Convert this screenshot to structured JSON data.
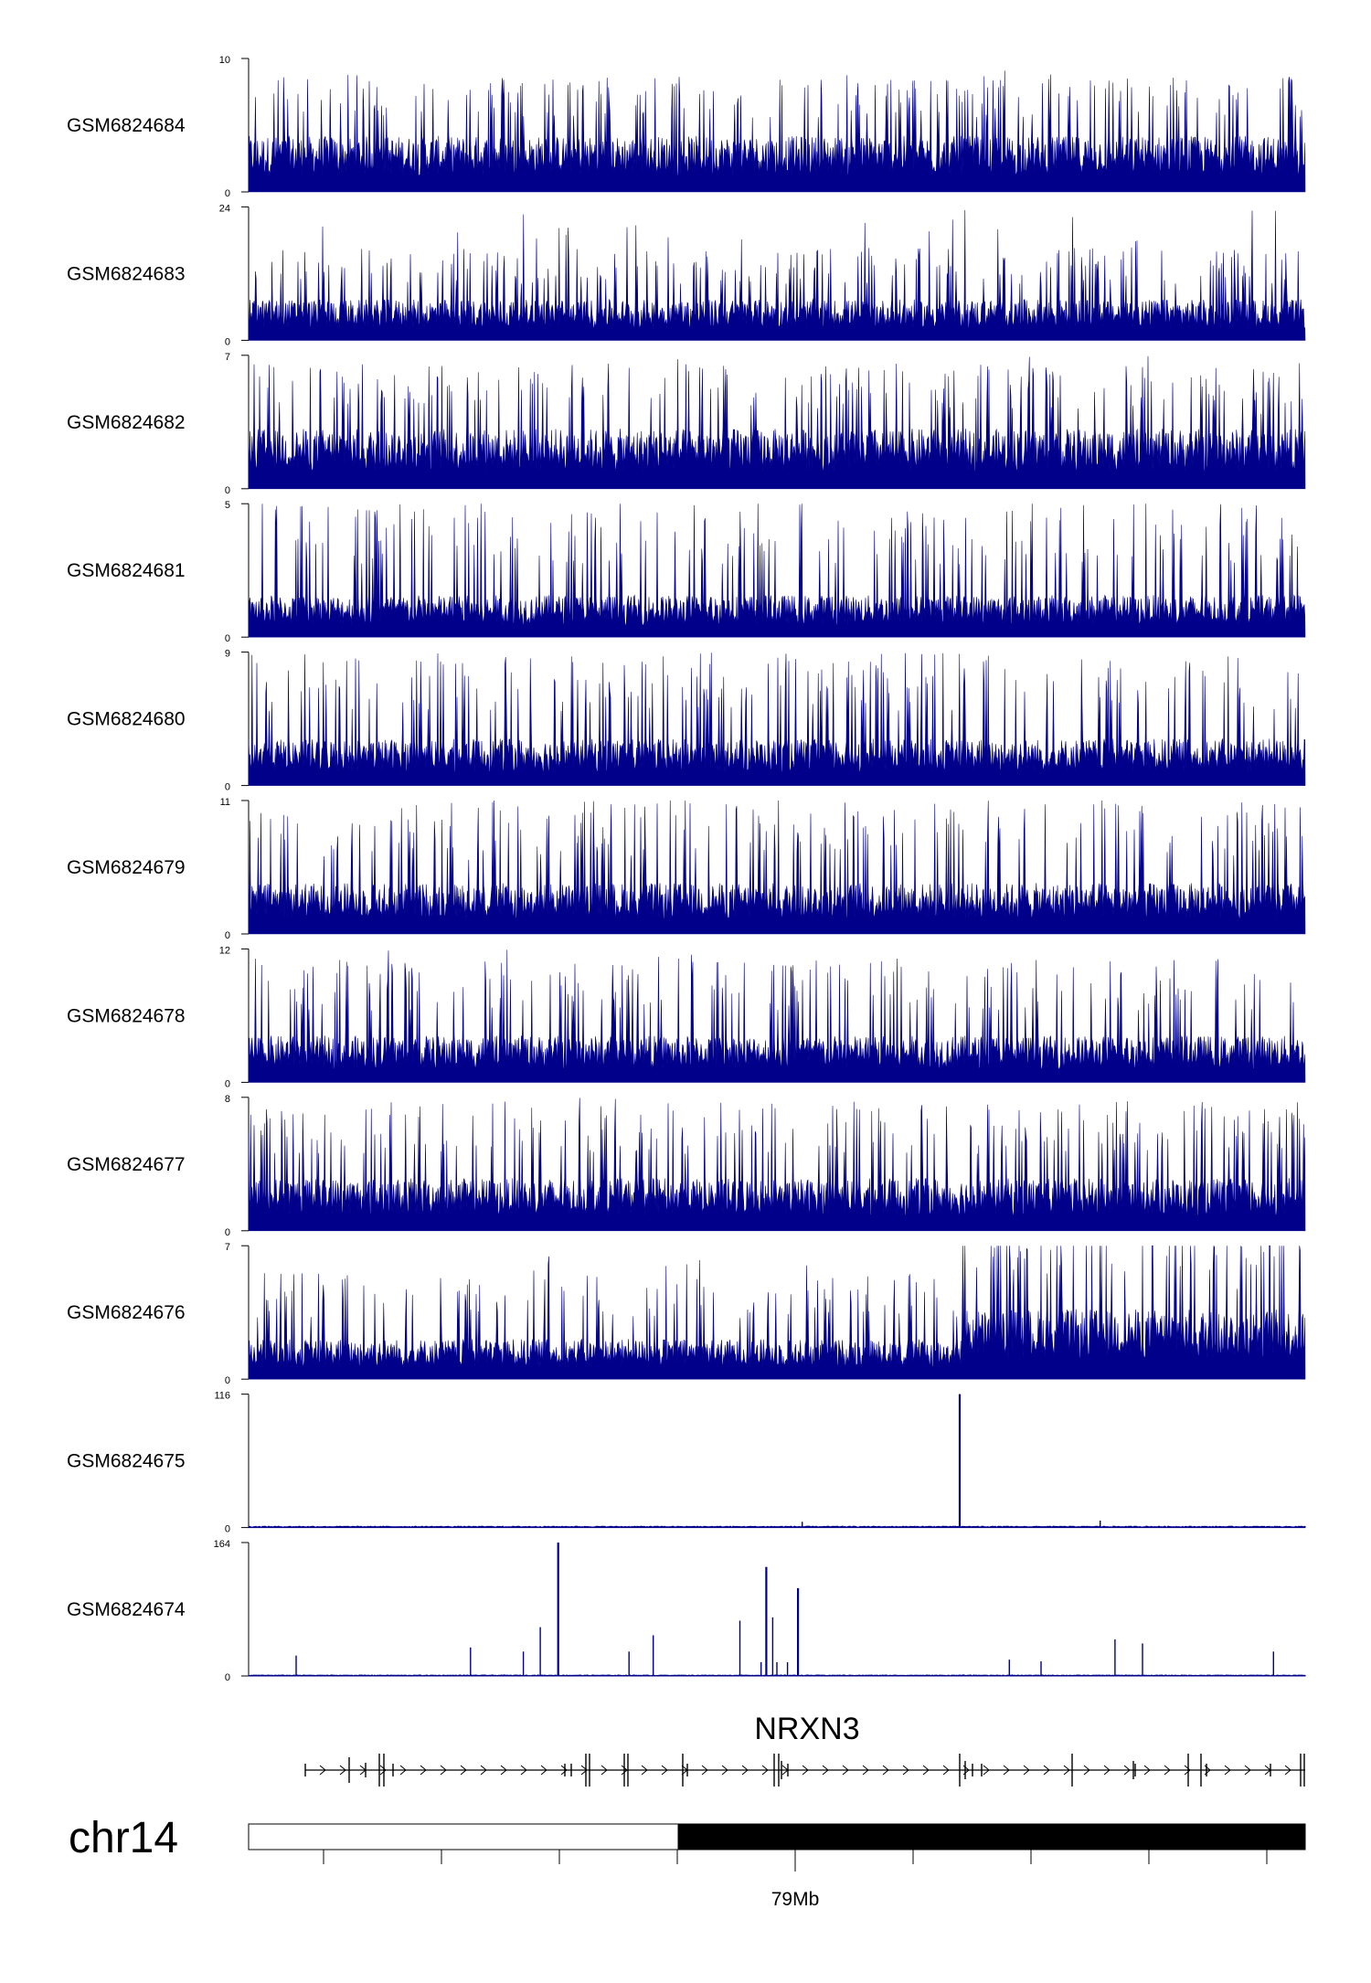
{
  "chart_data": {
    "type": "area",
    "title": "",
    "color": "#00008B",
    "gene": {
      "name": "NRXN3",
      "strand": "+"
    },
    "chromosome": {
      "name": "chr14",
      "xtick_labels": [
        "79Mb"
      ]
    },
    "tracks": [
      {
        "sample": "GSM6824684",
        "ylim": [
          0,
          10
        ],
        "pattern": "noise",
        "base": 4,
        "spread": 2
      },
      {
        "sample": "GSM6824683",
        "ylim": [
          0,
          24
        ],
        "pattern": "noise",
        "base": 7,
        "spread": 4
      },
      {
        "sample": "GSM6824682",
        "ylim": [
          0,
          7
        ],
        "pattern": "noise",
        "base": 3,
        "spread": 1.5
      },
      {
        "sample": "GSM6824681",
        "ylim": [
          0,
          5
        ],
        "pattern": "noise",
        "base": 1.5,
        "spread": 1.5
      },
      {
        "sample": "GSM6824680",
        "ylim": [
          0,
          9
        ],
        "pattern": "noise",
        "base": 3,
        "spread": 2.5
      },
      {
        "sample": "GSM6824679",
        "ylim": [
          0,
          11
        ],
        "pattern": "noise",
        "base": 4,
        "spread": 3
      },
      {
        "sample": "GSM6824678",
        "ylim": [
          0,
          12
        ],
        "pattern": "noise",
        "base": 4,
        "spread": 3
      },
      {
        "sample": "GSM6824677",
        "ylim": [
          0,
          8
        ],
        "pattern": "noise",
        "base": 3,
        "spread": 2
      },
      {
        "sample": "GSM6824676",
        "ylim": [
          0,
          7
        ],
        "pattern": "noise-step",
        "base": 2,
        "spread": 1.5
      },
      {
        "sample": "GSM6824675",
        "ylim": [
          0,
          116
        ],
        "pattern": "peaks",
        "base": 1,
        "spread": 1,
        "peaks": [
          [
            0.673,
            116
          ],
          [
            0.806,
            6
          ],
          [
            0.524,
            5
          ]
        ]
      },
      {
        "sample": "GSM6824674",
        "ylim": [
          0,
          164
        ],
        "pattern": "peaks",
        "base": 1,
        "spread": 1,
        "peaks": [
          [
            0.293,
            164
          ],
          [
            0.49,
            134
          ],
          [
            0.496,
            72
          ],
          [
            0.52,
            108
          ],
          [
            0.465,
            68
          ],
          [
            0.276,
            60
          ],
          [
            0.21,
            35
          ],
          [
            0.26,
            30
          ],
          [
            0.36,
            30
          ],
          [
            0.045,
            25
          ],
          [
            0.383,
            50
          ],
          [
            0.485,
            17
          ],
          [
            0.5,
            17
          ],
          [
            0.51,
            17
          ],
          [
            0.82,
            45
          ],
          [
            0.846,
            40
          ],
          [
            0.97,
            30
          ],
          [
            0.72,
            20
          ],
          [
            0.75,
            18
          ]
        ]
      }
    ]
  }
}
